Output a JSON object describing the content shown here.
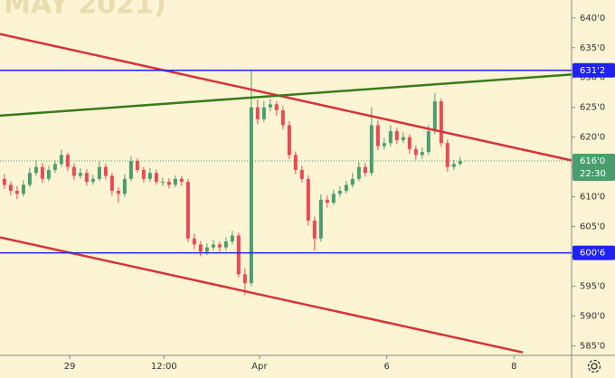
{
  "chart_data": {
    "type": "candlestick",
    "title": "MAY 2021)",
    "open": [
      613,
      612,
      611,
      610.5,
      612,
      614,
      615,
      613,
      614.5,
      615.5,
      617,
      615,
      613.5,
      614,
      612.5,
      613,
      615,
      613.5,
      611,
      610.5,
      613,
      616,
      614.5,
      613,
      614,
      612.5,
      612.5,
      612,
      613,
      612.5,
      603,
      602,
      600.8,
      601.5,
      602,
      601.5,
      602.5,
      603.5,
      597,
      595.5,
      625,
      623,
      625,
      625.5,
      624.5,
      622,
      617,
      614.5,
      613,
      606,
      603,
      609.5,
      609,
      610.5,
      611,
      612,
      613,
      615,
      614,
      622,
      618.5,
      619,
      621,
      619.5,
      620,
      618,
      617,
      617.5,
      621,
      626,
      619,
      615,
      615.5
    ],
    "high": [
      613.8,
      612.6,
      611.8,
      612.8,
      614.9,
      616.2,
      615.7,
      615.2,
      616.1,
      617.9,
      617.4,
      615.6,
      614.8,
      614.6,
      613.7,
      615.9,
      615.5,
      614,
      611.6,
      613.8,
      616.8,
      616.5,
      615,
      614.8,
      614.5,
      613.2,
      613.1,
      613.6,
      613.5,
      613,
      603.8,
      602.6,
      602.2,
      602.8,
      602.5,
      603.2,
      604.3,
      604,
      598,
      631.2,
      626.3,
      626,
      626.4,
      626,
      625.2,
      622.7,
      617.6,
      615.2,
      613.6,
      606.7,
      610.4,
      610.2,
      611.2,
      611.8,
      612.7,
      614,
      615.8,
      615.7,
      625,
      622.8,
      619.9,
      622,
      621.6,
      620.8,
      620.5,
      618.6,
      618.3,
      622,
      627.4,
      626.5,
      619.6,
      616.2,
      616.7
    ],
    "low": [
      611.3,
      610.2,
      609.6,
      610,
      611.6,
      613.5,
      612.3,
      612.6,
      614,
      615,
      614.3,
      612.8,
      613,
      611.8,
      612,
      612.6,
      612.9,
      610.2,
      609,
      610,
      612.6,
      614,
      612.4,
      612.5,
      612,
      611.8,
      611.4,
      611.6,
      611.8,
      602.4,
      601.2,
      600,
      600.2,
      601,
      600.8,
      601,
      602,
      596.5,
      593.5,
      595,
      622.2,
      622.5,
      624.3,
      623.6,
      621.3,
      616.3,
      613.8,
      612.4,
      605.2,
      601,
      602.5,
      608.2,
      608.6,
      610,
      610.6,
      611.5,
      612.6,
      613.4,
      613.5,
      617.8,
      617.9,
      618.4,
      618.8,
      619,
      617.2,
      616.2,
      616.4,
      617,
      620.5,
      618.4,
      614.2,
      614.5,
      615.2
    ],
    "close": [
      612,
      611,
      610.5,
      612,
      614,
      615,
      613,
      614.5,
      615.5,
      617,
      615,
      613.5,
      614,
      612.5,
      613,
      615,
      613.5,
      611,
      610.5,
      613,
      616,
      614.5,
      613,
      614,
      612.5,
      612.5,
      612,
      613,
      612.5,
      603,
      602,
      600.8,
      601.5,
      602,
      601.5,
      602.5,
      603.5,
      597,
      595.5,
      625,
      623,
      625,
      625.5,
      624.5,
      622,
      617,
      614.5,
      613,
      606,
      603,
      609.5,
      609,
      610.5,
      611,
      612,
      613,
      615,
      614,
      622,
      618.5,
      619,
      621,
      619.5,
      620,
      618,
      617,
      617.5,
      621,
      626,
      619,
      615,
      615.5,
      616
    ],
    "up_color": "#4a9e6e",
    "down_color": "#e84a55",
    "xlim": [
      -0.7,
      89.6
    ],
    "xticks": [
      {
        "value": 10.3,
        "label": "29"
      },
      {
        "value": 25.2,
        "label": "12:00"
      },
      {
        "value": 40.3,
        "label": "Apr"
      },
      {
        "value": 60.4,
        "label": "6"
      },
      {
        "value": 80.5,
        "label": "8"
      }
    ],
    "ylim": [
      583.4,
      643
    ],
    "yticks": [
      {
        "value": 585,
        "label": "585'0"
      },
      {
        "value": 590,
        "label": "590'0"
      },
      {
        "value": 595,
        "label": "595'0"
      },
      {
        "value": 600,
        "label": "600'0"
      },
      {
        "value": 605,
        "label": "605'0"
      },
      {
        "value": 610,
        "label": "610'0"
      },
      {
        "value": 615,
        "label": "615'0"
      },
      {
        "value": 620,
        "label": "620'0"
      },
      {
        "value": 625,
        "label": "625'0"
      },
      {
        "value": 630,
        "label": "630'0"
      },
      {
        "value": 635,
        "label": "635'0"
      },
      {
        "value": 640,
        "label": "640'0"
      }
    ],
    "levels": [
      {
        "value": 631.2,
        "label": "631'2",
        "color": "#1f22f0"
      },
      {
        "value": 600.6,
        "label": "600'6",
        "color": "#1f22f0"
      }
    ],
    "trendlines": [
      {
        "color": "#d8323a",
        "x": [
          -0.7,
          89.6
        ],
        "y": [
          637.3,
          616.1
        ]
      },
      {
        "color": "#d8323a",
        "x": [
          -0.7,
          81.9
        ],
        "y": [
          603.2,
          583.9
        ]
      },
      {
        "color": "#3a7a1c",
        "x": [
          -0.7,
          89.6
        ],
        "y": [
          623.6,
          630.5
        ]
      }
    ],
    "last_price": {
      "value": 616.0,
      "label": "616'0",
      "countdown": "22:30",
      "color": "#4a9e6e"
    },
    "grid": false
  }
}
